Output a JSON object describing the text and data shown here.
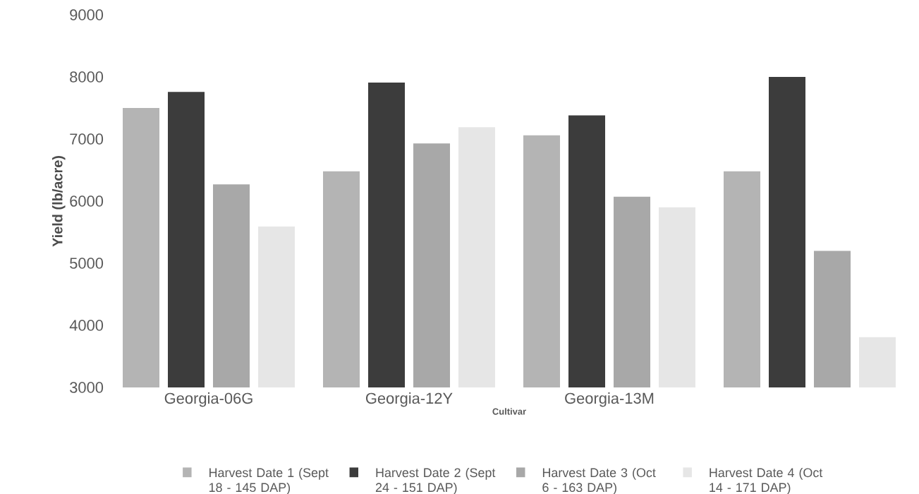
{
  "chart_data": {
    "type": "bar",
    "xlabel": "Cultivar",
    "ylabel": "Yield (lb/acre)",
    "categories": [
      "Georgia-06G",
      "Georgia-12Y",
      "Georgia-13M",
      null
    ],
    "series": [
      {
        "name": "Harvest Date 1 (Sept 18 - 145 DAP)",
        "color": "#b4b4b4",
        "values": [
          7500,
          6480,
          7060,
          6480
        ]
      },
      {
        "name": "Harvest Date 2 (Sept 24 - 151 DAP)",
        "color": "#3c3c3c",
        "values": [
          7760,
          7910,
          7380,
          8000
        ]
      },
      {
        "name": "Harvest Date 3 (Oct 6 - 163 DAP)",
        "color": "#a8a8a8",
        "values": [
          6270,
          6930,
          6070,
          5200
        ]
      },
      {
        "name": "Harvest Date 4 (Oct 14 - 171 DAP)",
        "color": "#e6e6e6",
        "values": [
          5590,
          7190,
          5900,
          3810
        ]
      }
    ],
    "ylim": [
      3000,
      9000
    ],
    "yticks": [
      3000,
      4000,
      5000,
      6000,
      7000,
      8000,
      9000
    ],
    "grid": false,
    "legend": "bottom"
  }
}
